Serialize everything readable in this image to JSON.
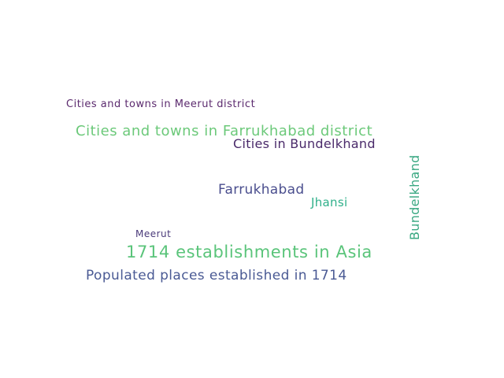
{
  "words": [
    {
      "text": "Cities and towns in Meerut district",
      "color": "#5b2a6e"
    },
    {
      "text": "Cities and towns in Farrukhabad district",
      "color": "#6cc97a"
    },
    {
      "text": "Cities in Bundelkhand",
      "color": "#4a2a6a"
    },
    {
      "text": "Bundelkhand",
      "color": "#3aa882"
    },
    {
      "text": "Farrukhabad",
      "color": "#4a4e8e"
    },
    {
      "text": "Jhansi",
      "color": "#2fb08a"
    },
    {
      "text": "Meerut",
      "color": "#4a3a7a"
    },
    {
      "text": "1714 establishments in Asia",
      "color": "#5ac47a"
    },
    {
      "text": "Populated places established in 1714",
      "color": "#4a5a94"
    }
  ]
}
